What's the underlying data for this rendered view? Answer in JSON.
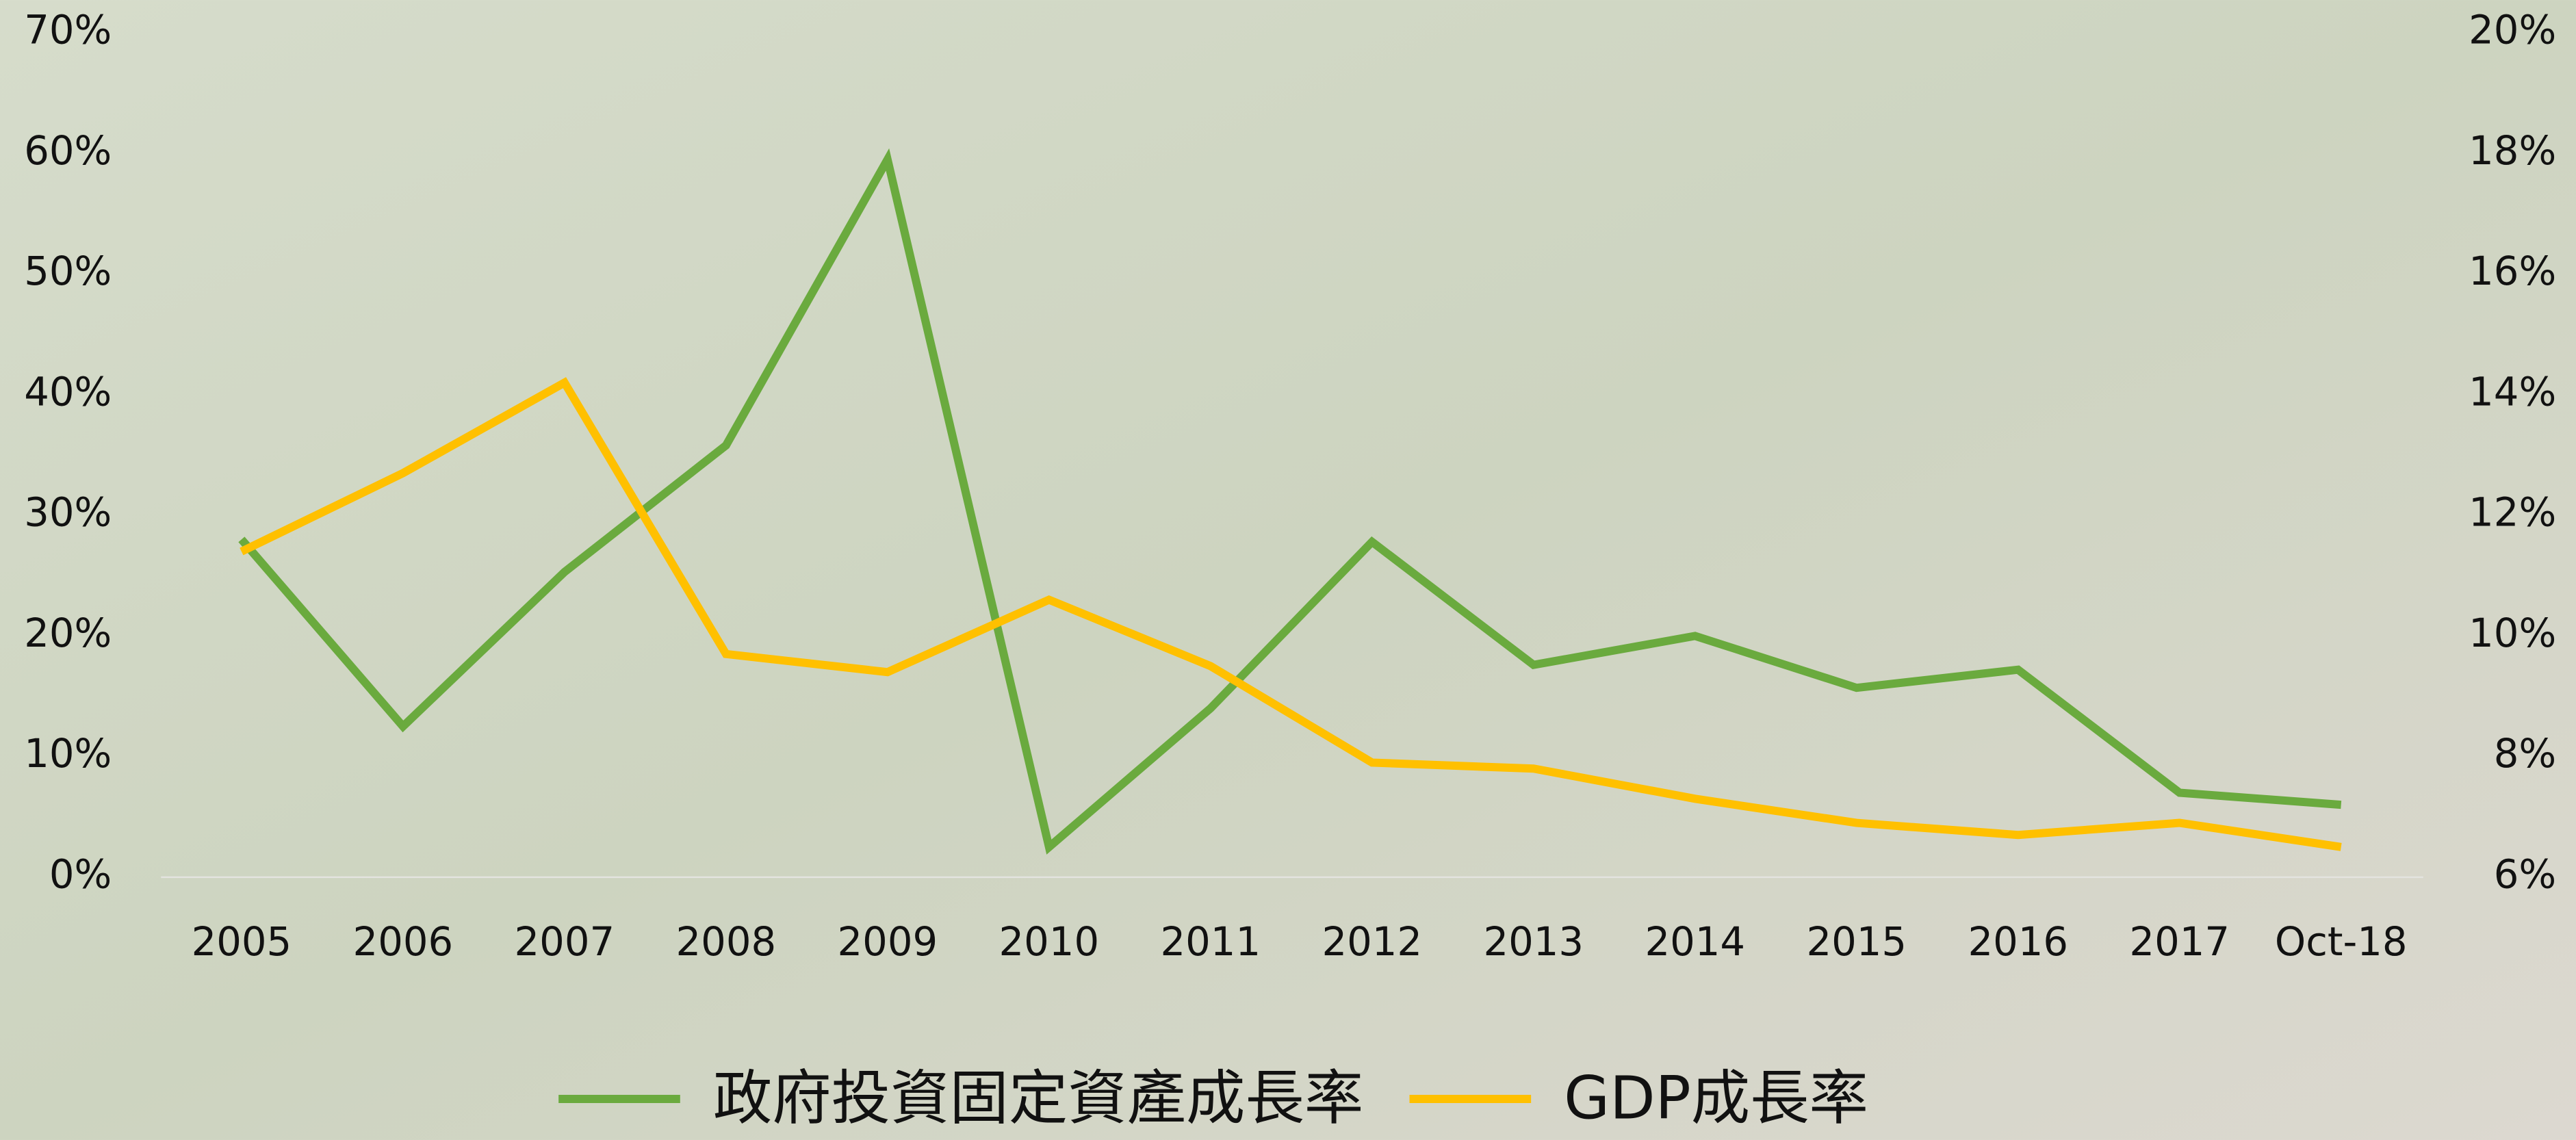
{
  "chart_data": {
    "type": "line",
    "categories": [
      "2005",
      "2006",
      "2007",
      "2008",
      "2009",
      "2010",
      "2011",
      "2012",
      "2013",
      "2014",
      "2015",
      "2016",
      "2017",
      "Oct-18"
    ],
    "series": [
      {
        "name": "政府投資固定資產成長率",
        "color": "#6aaa3e",
        "values": [
          28,
          12.5,
          25.3,
          35.8,
          59.5,
          2.5,
          14,
          27.8,
          17.6,
          20,
          15.7,
          17.2,
          7,
          6
        ]
      },
      {
        "name": "GDP成長率",
        "color": "#ffc000",
        "axis": "y2",
        "values": [
          11.4,
          12.7,
          14.2,
          9.7,
          9.4,
          10.6,
          9.5,
          7.9,
          7.8,
          7.3,
          6.9,
          6.7,
          6.9,
          6.5
        ]
      }
    ],
    "ylim": [
      0,
      70
    ],
    "yticks": [
      {
        "value": 0,
        "label": "0%"
      },
      {
        "value": 10,
        "label": "10%"
      },
      {
        "value": 20,
        "label": "20%"
      },
      {
        "value": 30,
        "label": "30%"
      },
      {
        "value": 40,
        "label": "40%"
      },
      {
        "value": 50,
        "label": "50%"
      },
      {
        "value": 60,
        "label": "60%"
      },
      {
        "value": 70,
        "label": "70%"
      }
    ],
    "y2lim": [
      6,
      20
    ],
    "y2ticks": [
      {
        "value": 6,
        "label": "6%"
      },
      {
        "value": 8,
        "label": "8%"
      },
      {
        "value": 10,
        "label": "10%"
      },
      {
        "value": 12,
        "label": "12%"
      },
      {
        "value": 14,
        "label": "14%"
      },
      {
        "value": 16,
        "label": "16%"
      },
      {
        "value": 18,
        "label": "18%"
      },
      {
        "value": 20,
        "label": "20%"
      }
    ],
    "legend": "bottom"
  }
}
